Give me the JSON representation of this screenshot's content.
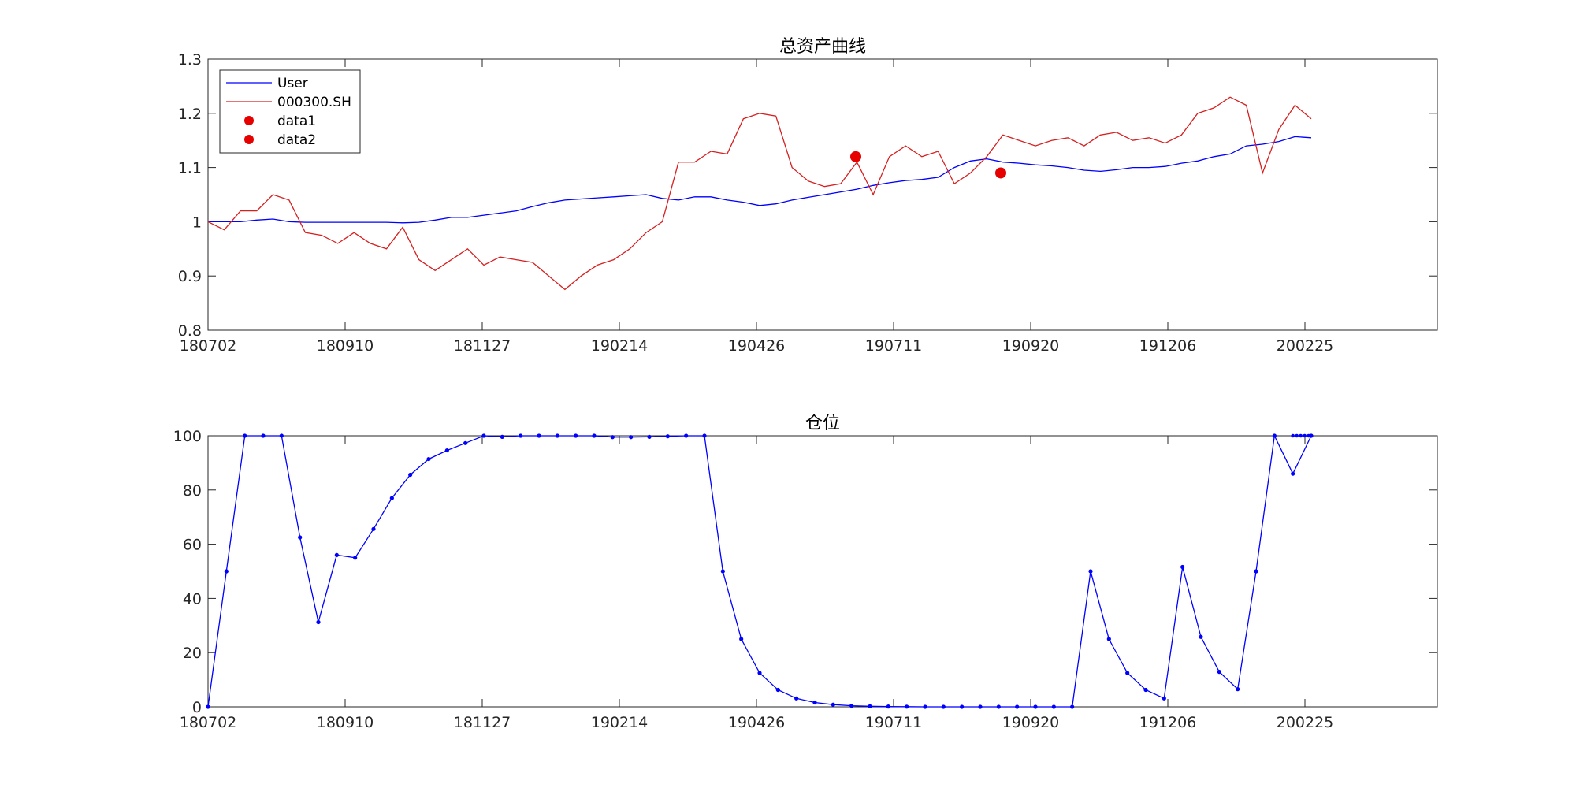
{
  "chart_data": [
    {
      "type": "line",
      "title": "总资产曲线",
      "xlabel": "",
      "ylabel": "",
      "ylim": [
        0.8,
        1.3
      ],
      "yticks": [
        "0.8",
        "0.9",
        "1",
        "1.1",
        "1.2",
        "1.3"
      ],
      "xticks": [
        "180702",
        "180910",
        "181127",
        "190214",
        "190426",
        "190711",
        "190920",
        "191206",
        "200225"
      ],
      "grid": false,
      "legend": "top-left",
      "series": [
        {
          "name": "User",
          "color": "#0000ff",
          "values": [
            1.0,
            1.0,
            1.0,
            1.003,
            1.005,
            1.0,
            0.999,
            0.999,
            0.999,
            0.999,
            0.999,
            0.999,
            0.998,
            0.999,
            1.003,
            1.008,
            1.008,
            1.012,
            1.016,
            1.02,
            1.028,
            1.035,
            1.04,
            1.042,
            1.044,
            1.046,
            1.048,
            1.05,
            1.043,
            1.04,
            1.046,
            1.046,
            1.04,
            1.036,
            1.03,
            1.033,
            1.04,
            1.045,
            1.05,
            1.055,
            1.06,
            1.067,
            1.072,
            1.076,
            1.078,
            1.082,
            1.1,
            1.112,
            1.116,
            1.11,
            1.108,
            1.105,
            1.103,
            1.1,
            1.095,
            1.093,
            1.096,
            1.1,
            1.1,
            1.102,
            1.108,
            1.112,
            1.12,
            1.125,
            1.14,
            1.143,
            1.148,
            1.157,
            1.155
          ]
        },
        {
          "name": "000300.SH",
          "color": "#d62020",
          "values": [
            1.0,
            0.985,
            1.02,
            1.02,
            1.05,
            1.04,
            0.98,
            0.975,
            0.96,
            0.98,
            0.96,
            0.95,
            0.99,
            0.93,
            0.91,
            0.93,
            0.95,
            0.92,
            0.935,
            0.93,
            0.925,
            0.9,
            0.875,
            0.9,
            0.92,
            0.93,
            0.95,
            0.98,
            1.0,
            1.11,
            1.11,
            1.13,
            1.125,
            1.19,
            1.2,
            1.195,
            1.1,
            1.075,
            1.065,
            1.07,
            1.11,
            1.05,
            1.12,
            1.14,
            1.12,
            1.13,
            1.07,
            1.09,
            1.12,
            1.16,
            1.15,
            1.14,
            1.15,
            1.155,
            1.14,
            1.16,
            1.165,
            1.15,
            1.155,
            1.145,
            1.16,
            1.2,
            1.21,
            1.23,
            1.215,
            1.09,
            1.17,
            1.215,
            1.19
          ]
        },
        {
          "name": "data1",
          "color": "#e60000",
          "points": [
            [
              1086,
              1.12
            ]
          ]
        },
        {
          "name": "data2",
          "color": "#e60000",
          "points": [
            [
              1270,
              1.09
            ]
          ]
        }
      ]
    },
    {
      "type": "line",
      "title": "仓位",
      "xlabel": "",
      "ylabel": "",
      "ylim": [
        0,
        100
      ],
      "yticks": [
        "0",
        "20",
        "40",
        "60",
        "80",
        "100"
      ],
      "xticks": [
        "180702",
        "180910",
        "181127",
        "190214",
        "190426",
        "190711",
        "190920",
        "191206",
        "200225"
      ],
      "grid": false,
      "series": [
        {
          "name": "",
          "color": "#0000ff",
          "marker": "dot",
          "values": [
            0,
            50,
            100,
            100,
            100,
            62.5,
            31.25,
            56,
            55,
            65.6,
            77,
            85.6,
            91.4,
            94.6,
            97.3,
            100,
            99.6,
            100,
            100,
            100,
            100,
            100,
            99.5,
            99.5,
            99.6,
            99.8,
            100,
            100,
            50,
            25,
            12.5,
            6.25,
            3.1,
            1.6,
            0.8,
            0.4,
            0.2,
            0.1,
            0.05,
            0,
            0,
            0,
            0,
            0,
            0,
            0,
            0,
            0,
            50,
            25,
            12.5,
            6.25,
            3.1,
            51.6,
            25.8,
            12.9,
            6.5,
            50,
            100,
            86,
            100
          ]
        }
      ]
    }
  ]
}
